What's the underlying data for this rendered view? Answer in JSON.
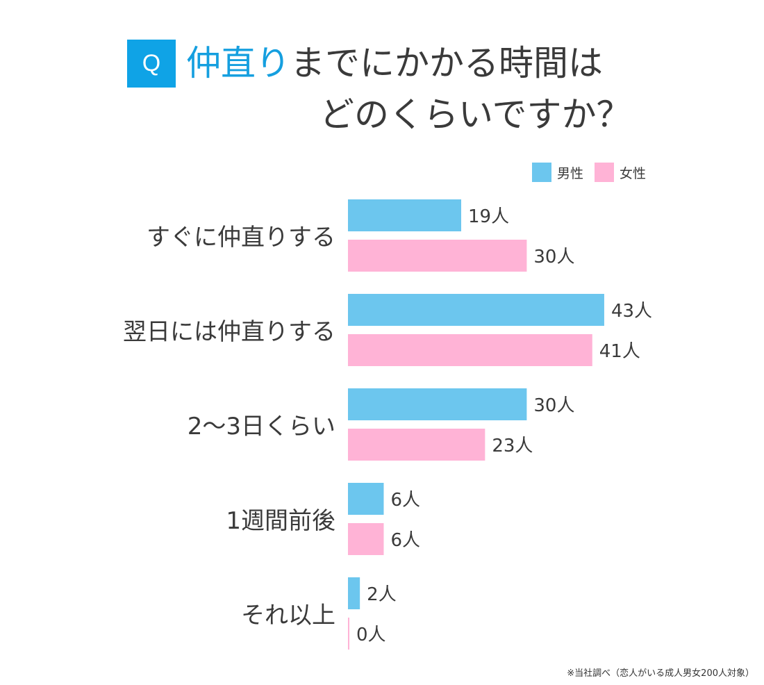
{
  "title": {
    "badge": "Q",
    "line1_highlight": "仲直り",
    "line1_rest": "までにかかる時間は",
    "line2": "どのくらいですか？"
  },
  "footnote": "※当社調べ（恋人がいる成人男女200人対象）",
  "colors": {
    "male": "#6cc6ee",
    "female": "#ffb3d6",
    "accent": "#0fa3e6"
  },
  "chart_data": {
    "type": "bar",
    "orientation": "horizontal",
    "categories": [
      "すぐに仲直りする",
      "翌日には仲直りする",
      "2〜3日くらい",
      "1週間前後",
      "それ以上"
    ],
    "series": [
      {
        "name": "男性",
        "values": [
          19,
          43,
          30,
          6,
          2
        ]
      },
      {
        "name": "女性",
        "values": [
          30,
          41,
          23,
          6,
          0
        ]
      }
    ],
    "unit": "人",
    "legend_position": "top-right",
    "grid": false
  }
}
